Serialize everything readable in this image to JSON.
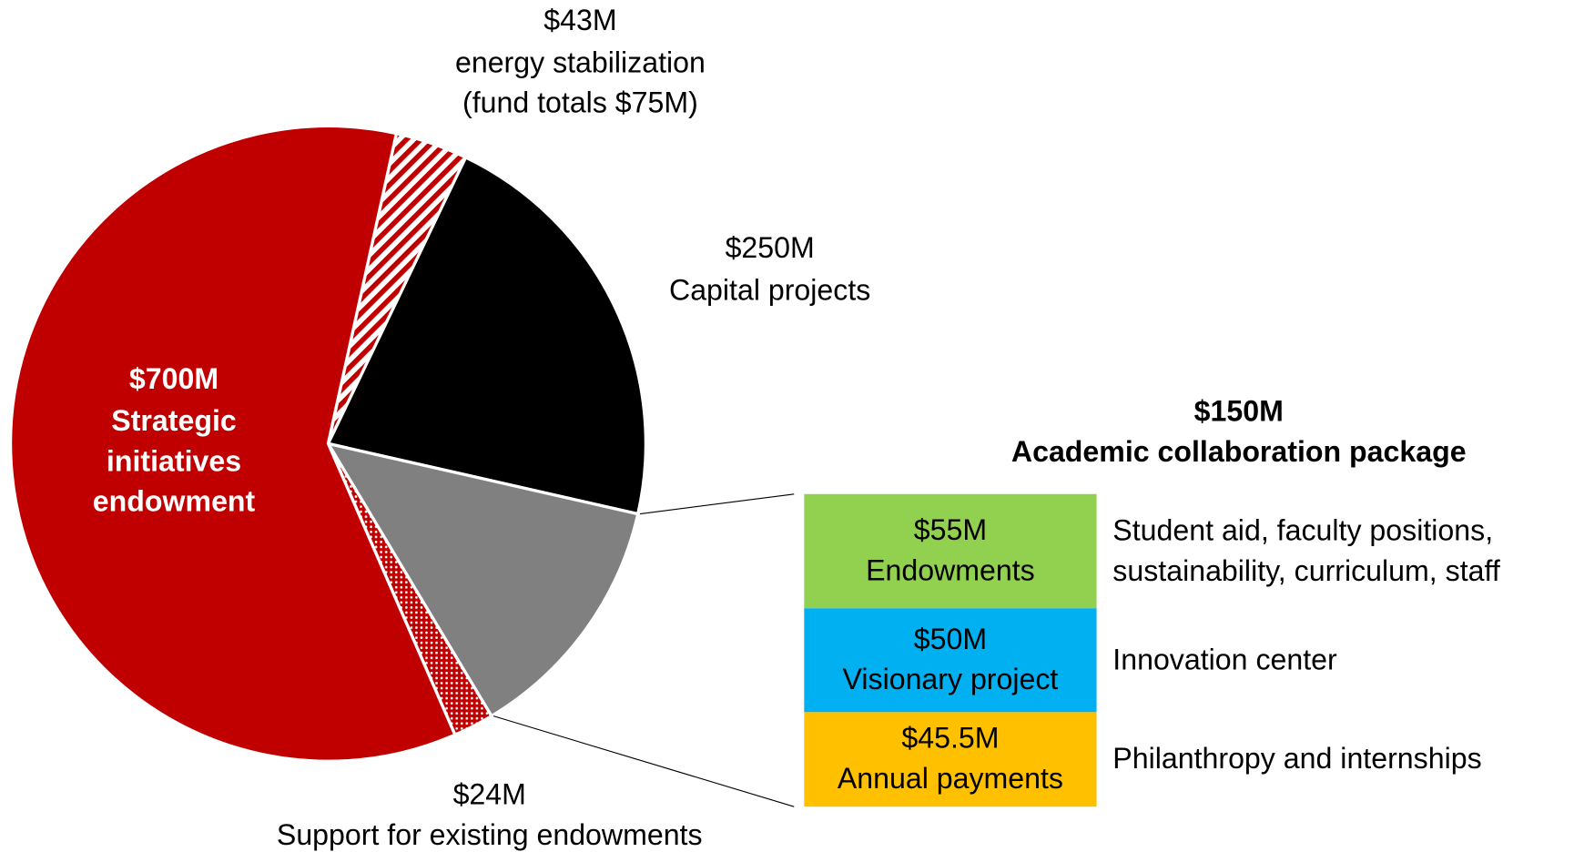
{
  "chart_data": [
    {
      "type": "pie",
      "categories": [
        "energy stabilization",
        "Capital projects",
        "Academic collaboration package",
        "Support for existing endowments",
        "Strategic initiatives endowment"
      ],
      "values": [
        43,
        250,
        150,
        24,
        700
      ],
      "value_labels": [
        "$43M",
        "$250M",
        "$150M",
        "$24M",
        "$700M"
      ],
      "colors": [
        "#c00000",
        "#000000",
        "#808080",
        "#c00000",
        "#c00000"
      ],
      "patterns": [
        "hatch",
        "solid",
        "solid",
        "dots",
        "solid"
      ],
      "annotation": "(fund totals $75M)"
    },
    {
      "type": "bar",
      "stacked": true,
      "categories": [
        "Endowments",
        "Visionary project",
        "Annual payments"
      ],
      "values": [
        55,
        50,
        45.5
      ],
      "value_labels": [
        "$55M",
        "$50M",
        "$45.5M"
      ],
      "descriptions": [
        "Student aid, faculty positions, sustainability, curriculum, staff",
        "Innovation center",
        "Philanthropy and internships"
      ],
      "colors": [
        "#92d050",
        "#00b0f0",
        "#ffc000"
      ]
    }
  ]
}
